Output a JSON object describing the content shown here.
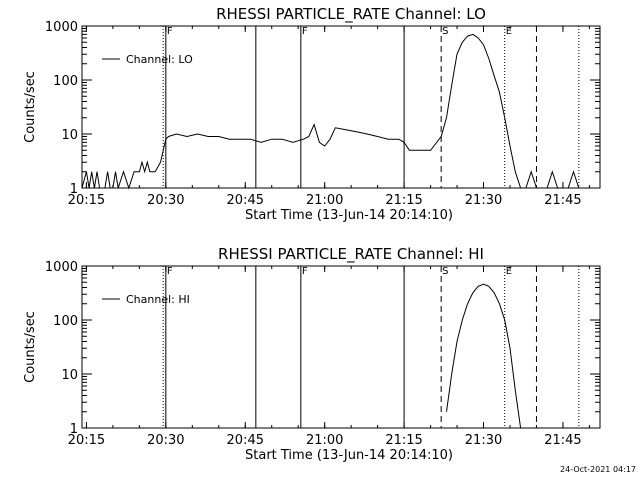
{
  "timestamp": "24-Oct-2021 04:17",
  "chart_data": [
    {
      "type": "line",
      "title": "RHESSI PARTICLE_RATE Channel: LO",
      "xlabel": "Start Time (13-Jun-14 20:14:10)",
      "ylabel": "Counts/sec",
      "yscale": "log",
      "ylim": [
        1,
        1000
      ],
      "xlim": [
        "20:14:10",
        "21:52:00"
      ],
      "xticks": [
        "20:15",
        "20:30",
        "20:45",
        "21:00",
        "21:15",
        "21:30",
        "21:45"
      ],
      "yticks": [
        "1",
        "10",
        "100",
        "1000"
      ],
      "legend": {
        "label": "Channel: LO",
        "position": "top-left"
      },
      "markers": [
        {
          "time": "20:29:30",
          "style": "dotted",
          "label": ""
        },
        {
          "time": "20:30:00",
          "style": "solid",
          "label": "F"
        },
        {
          "time": "20:47:00",
          "style": "solid",
          "label": ""
        },
        {
          "time": "20:55:30",
          "style": "solid",
          "label": "F"
        },
        {
          "time": "21:15:00",
          "style": "solid",
          "label": ""
        },
        {
          "time": "21:22:00",
          "style": "dashed",
          "label": "S"
        },
        {
          "time": "21:34:00",
          "style": "dotted",
          "label": "E"
        },
        {
          "time": "21:40:00",
          "style": "dashed",
          "label": ""
        },
        {
          "time": "21:48:00",
          "style": "dotted",
          "label": ""
        }
      ],
      "series": [
        {
          "name": "Channel: LO",
          "x": [
            "20:14:10",
            "20:15:00",
            "20:15:30",
            "20:16:00",
            "20:16:30",
            "20:17:00",
            "20:17:30",
            "20:18:00",
            "20:18:30",
            "20:19:00",
            "20:19:30",
            "20:20:00",
            "20:20:30",
            "20:21:00",
            "20:22:00",
            "20:23:00",
            "20:24:00",
            "20:25:00",
            "20:25:30",
            "20:26:00",
            "20:26:30",
            "20:27:00",
            "20:27:30",
            "20:28:00",
            "20:29:00",
            "20:30:00",
            "20:30:30",
            "20:32:00",
            "20:34:00",
            "20:36:00",
            "20:38:00",
            "20:40:00",
            "20:42:00",
            "20:44:00",
            "20:46:00",
            "20:48:00",
            "20:50:00",
            "20:52:00",
            "20:54:00",
            "20:56:00",
            "20:57:00",
            "20:58:00",
            "20:59:00",
            "21:00:00",
            "21:01:00",
            "21:02:00",
            "21:04:00",
            "21:06:00",
            "21:08:00",
            "21:10:00",
            "21:12:00",
            "21:14:00",
            "21:15:00",
            "21:16:00",
            "21:18:00",
            "21:20:00",
            "21:22:00",
            "21:23:00",
            "21:24:00",
            "21:25:00",
            "21:26:00",
            "21:27:00",
            "21:28:00",
            "21:29:00",
            "21:30:00",
            "21:31:00",
            "21:32:00",
            "21:33:00",
            "21:34:00",
            "21:35:00",
            "21:36:00",
            "21:37:00",
            "21:38:00",
            "21:39:00",
            "21:40:00",
            "21:41:00",
            "21:42:00",
            "21:43:00",
            "21:44:00",
            "21:45:00",
            "21:46:00",
            "21:47:00",
            "21:48:00",
            "21:49:00",
            "21:50:00",
            "21:51:00",
            "21:52:00"
          ],
          "values": [
            1,
            2,
            1,
            2,
            1,
            2,
            1,
            1,
            1,
            2,
            1,
            1,
            2,
            1,
            2,
            1,
            2,
            2,
            3,
            2,
            3,
            2,
            2,
            2,
            3,
            8,
            9,
            10,
            9,
            10,
            9,
            9,
            8,
            8,
            8,
            7,
            8,
            8,
            7,
            8,
            9,
            15,
            7,
            6,
            8,
            13,
            12,
            11,
            10,
            9,
            8,
            8,
            7,
            5,
            5,
            5,
            9,
            20,
            80,
            300,
            500,
            650,
            700,
            600,
            450,
            250,
            120,
            60,
            20,
            6,
            2,
            1,
            1,
            2,
            1,
            1,
            1,
            2,
            1,
            1,
            1,
            2,
            1,
            1,
            1,
            1,
            1
          ]
        }
      ]
    },
    {
      "type": "line",
      "title": "RHESSI PARTICLE_RATE Channel: HI",
      "xlabel": "Start Time (13-Jun-14 20:14:10)",
      "ylabel": "Counts/sec",
      "yscale": "log",
      "ylim": [
        1,
        1000
      ],
      "xlim": [
        "20:14:10",
        "21:52:00"
      ],
      "xticks": [
        "20:15",
        "20:30",
        "20:45",
        "21:00",
        "21:15",
        "21:30",
        "21:45"
      ],
      "yticks": [
        "1",
        "10",
        "100",
        "1000"
      ],
      "legend": {
        "label": "Channel: HI",
        "position": "top-left"
      },
      "markers": [
        {
          "time": "20:29:30",
          "style": "dotted",
          "label": ""
        },
        {
          "time": "20:30:00",
          "style": "solid",
          "label": "F"
        },
        {
          "time": "20:47:00",
          "style": "solid",
          "label": ""
        },
        {
          "time": "20:55:30",
          "style": "solid",
          "label": "F"
        },
        {
          "time": "21:15:00",
          "style": "solid",
          "label": ""
        },
        {
          "time": "21:22:00",
          "style": "dashed",
          "label": "S"
        },
        {
          "time": "21:34:00",
          "style": "dotted",
          "label": "E"
        },
        {
          "time": "21:40:00",
          "style": "dashed",
          "label": ""
        },
        {
          "time": "21:48:00",
          "style": "dotted",
          "label": ""
        }
      ],
      "series": [
        {
          "name": "Channel: HI",
          "x": [
            "21:23:00",
            "21:24:00",
            "21:25:00",
            "21:26:00",
            "21:27:00",
            "21:28:00",
            "21:29:00",
            "21:30:00",
            "21:31:00",
            "21:32:00",
            "21:33:00",
            "21:34:00",
            "21:35:00",
            "21:36:00",
            "21:37:00"
          ],
          "values": [
            2,
            10,
            40,
            100,
            200,
            320,
            420,
            460,
            420,
            320,
            200,
            100,
            30,
            5,
            1
          ]
        }
      ]
    }
  ]
}
